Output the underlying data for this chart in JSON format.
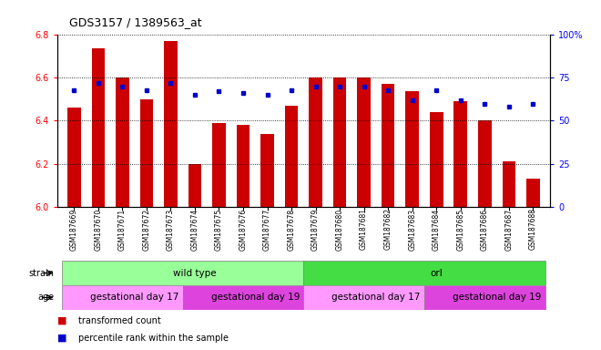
{
  "title": "GDS3157 / 1389563_at",
  "samples": [
    "GSM187669",
    "GSM187670",
    "GSM187671",
    "GSM187672",
    "GSM187673",
    "GSM187674",
    "GSM187675",
    "GSM187676",
    "GSM187677",
    "GSM187678",
    "GSM187679",
    "GSM187680",
    "GSM187681",
    "GSM187682",
    "GSM187683",
    "GSM187684",
    "GSM187685",
    "GSM187686",
    "GSM187687",
    "GSM187688"
  ],
  "bar_values": [
    6.46,
    6.74,
    6.6,
    6.5,
    6.77,
    6.2,
    6.39,
    6.38,
    6.34,
    6.47,
    6.6,
    6.6,
    6.6,
    6.57,
    6.54,
    6.44,
    6.49,
    6.4,
    6.21,
    6.13
  ],
  "percentile_values": [
    68,
    72,
    70,
    68,
    72,
    65,
    67,
    66,
    65,
    68,
    70,
    70,
    70,
    68,
    62,
    68,
    62,
    60,
    58,
    60
  ],
  "bar_color": "#cc0000",
  "dot_color": "#0000cc",
  "ymin": 6.0,
  "ymax": 6.8,
  "yticks": [
    6.0,
    6.2,
    6.4,
    6.6,
    6.8
  ],
  "right_yticks": [
    0,
    25,
    50,
    75,
    100
  ],
  "right_yticklabels": [
    "0",
    "25",
    "50",
    "75",
    "100%"
  ],
  "strain_groups": [
    {
      "label": "wild type",
      "start": 0,
      "end": 10,
      "color": "#99ff99"
    },
    {
      "label": "orl",
      "start": 10,
      "end": 20,
      "color": "#44dd44"
    }
  ],
  "age_groups": [
    {
      "label": "gestational day 17",
      "start": 0,
      "end": 5,
      "color": "#ff99ff"
    },
    {
      "label": "gestational day 19",
      "start": 5,
      "end": 10,
      "color": "#dd44dd"
    },
    {
      "label": "gestational day 17",
      "start": 10,
      "end": 15,
      "color": "#ff99ff"
    },
    {
      "label": "gestational day 19",
      "start": 15,
      "end": 20,
      "color": "#dd44dd"
    }
  ],
  "legend_items": [
    {
      "label": "transformed count",
      "color": "#cc0000"
    },
    {
      "label": "percentile rank within the sample",
      "color": "#0000cc"
    }
  ],
  "strain_label": "strain",
  "age_label": "age",
  "bg_color": "#f0f0f0"
}
